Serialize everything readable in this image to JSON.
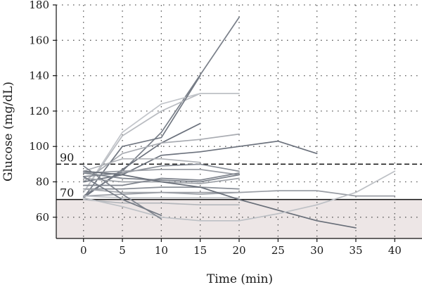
{
  "chart_data": {
    "type": "line",
    "title": "",
    "xlabel": "Time (min)",
    "ylabel": "Glucose (mg/dL)",
    "xlim": [
      -3.5,
      43.5
    ],
    "ylim": [
      48,
      180
    ],
    "x_ticks": [
      0,
      5,
      10,
      15,
      20,
      25,
      30,
      35,
      40
    ],
    "y_ticks": [
      60,
      80,
      100,
      120,
      140,
      160,
      180
    ],
    "grid": true,
    "legend": "none",
    "hypo_region": {
      "from": 48,
      "to": 70,
      "color": "#ede6e6"
    },
    "reference_lines": [
      {
        "label": "90",
        "value": 90,
        "style": "dashed",
        "color": "#111111"
      },
      {
        "label": "70",
        "value": 70,
        "style": "solid",
        "color": "#111111"
      }
    ],
    "series": [
      {
        "color": "#7a808a",
        "points": [
          [
            0,
            72
          ],
          [
            5,
            86
          ],
          [
            10,
            108
          ],
          [
            20,
            173
          ]
        ]
      },
      {
        "color": "#6c727d",
        "points": [
          [
            0,
            71
          ],
          [
            5,
            87
          ],
          [
            10,
            102
          ],
          [
            15,
            113
          ]
        ]
      },
      {
        "color": "#b9bcc1",
        "points": [
          [
            0,
            74
          ],
          [
            5,
            106
          ],
          [
            10,
            120
          ],
          [
            15,
            130
          ],
          [
            20,
            130
          ]
        ]
      },
      {
        "color": "#c2c5ca",
        "points": [
          [
            0,
            74
          ],
          [
            5,
            108
          ],
          [
            10,
            124
          ],
          [
            15,
            130
          ]
        ]
      },
      {
        "color": "#a9acb2",
        "points": [
          [
            0,
            80
          ],
          [
            5,
            96
          ],
          [
            10,
            102
          ],
          [
            15,
            104
          ],
          [
            20,
            107
          ]
        ]
      },
      {
        "color": "#737983",
        "points": [
          [
            0,
            71
          ],
          [
            5,
            100
          ],
          [
            10,
            105
          ],
          [
            15,
            140
          ]
        ]
      },
      {
        "color": "#6c727d",
        "points": [
          [
            0,
            80
          ],
          [
            5,
            84
          ],
          [
            10,
            95
          ],
          [
            15,
            97
          ],
          [
            20,
            100
          ],
          [
            25,
            103
          ],
          [
            30,
            96
          ]
        ]
      },
      {
        "color": "#b0b3b8",
        "points": [
          [
            0,
            86
          ],
          [
            5,
            93
          ],
          [
            10,
            93
          ],
          [
            15,
            91
          ]
        ]
      },
      {
        "color": "#878c95",
        "points": [
          [
            0,
            83
          ],
          [
            5,
            85
          ],
          [
            10,
            89
          ],
          [
            15,
            90
          ],
          [
            20,
            86
          ]
        ]
      },
      {
        "color": "#9a9ea5",
        "points": [
          [
            0,
            85
          ],
          [
            5,
            86
          ],
          [
            10,
            87
          ],
          [
            15,
            87
          ],
          [
            20,
            84
          ]
        ]
      },
      {
        "color": "#7d838c",
        "points": [
          [
            0,
            85
          ],
          [
            5,
            82
          ],
          [
            10,
            81
          ],
          [
            15,
            80
          ],
          [
            20,
            84
          ]
        ]
      },
      {
        "color": "#9fa3a9",
        "points": [
          [
            0,
            82
          ],
          [
            5,
            80
          ],
          [
            10,
            80
          ],
          [
            15,
            79
          ],
          [
            20,
            82
          ]
        ]
      },
      {
        "color": "#7f848d",
        "points": [
          [
            0,
            78
          ],
          [
            5,
            78
          ],
          [
            10,
            82
          ],
          [
            15,
            81
          ],
          [
            20,
            85
          ]
        ]
      },
      {
        "color": "#8a8f97",
        "points": [
          [
            0,
            76
          ],
          [
            5,
            76
          ],
          [
            10,
            77
          ],
          [
            15,
            77
          ],
          [
            20,
            76
          ]
        ]
      },
      {
        "color": "#a3a7ad",
        "points": [
          [
            0,
            76
          ],
          [
            5,
            74
          ],
          [
            10,
            74
          ],
          [
            15,
            73
          ],
          [
            20,
            74
          ]
        ]
      },
      {
        "color": "#9a9ea5",
        "points": [
          [
            0,
            72
          ],
          [
            5,
            73
          ],
          [
            10,
            74
          ],
          [
            15,
            74
          ],
          [
            20,
            74
          ],
          [
            25,
            75
          ],
          [
            30,
            75
          ],
          [
            35,
            72
          ],
          [
            40,
            72
          ]
        ]
      },
      {
        "color": "#c0c3c8",
        "points": [
          [
            0,
            72
          ],
          [
            5,
            71
          ],
          [
            10,
            71
          ],
          [
            15,
            71
          ],
          [
            20,
            71
          ]
        ]
      },
      {
        "color": "#b3b6bb",
        "points": [
          [
            0,
            70
          ],
          [
            5,
            68
          ],
          [
            10,
            68
          ],
          [
            15,
            67
          ],
          [
            20,
            67
          ]
        ]
      },
      {
        "color": "#686e78",
        "points": [
          [
            0,
            86
          ],
          [
            5,
            84
          ],
          [
            10,
            80
          ],
          [
            15,
            77
          ],
          [
            20,
            70
          ],
          [
            25,
            64
          ],
          [
            30,
            58
          ],
          [
            35,
            54
          ]
        ]
      },
      {
        "color": "#bdc0c5",
        "points": [
          [
            0,
            71
          ],
          [
            5,
            66
          ],
          [
            10,
            60
          ],
          [
            15,
            58
          ],
          [
            20,
            58
          ],
          [
            25,
            62
          ],
          [
            30,
            67
          ],
          [
            35,
            74
          ],
          [
            40,
            86
          ]
        ]
      },
      {
        "color": "#80858e",
        "points": [
          [
            0,
            89
          ],
          [
            5,
            73
          ],
          [
            10,
            59
          ]
        ]
      },
      {
        "color": "#767c86",
        "points": [
          [
            0,
            83
          ],
          [
            5,
            70
          ],
          [
            10,
            61
          ]
        ]
      }
    ]
  }
}
